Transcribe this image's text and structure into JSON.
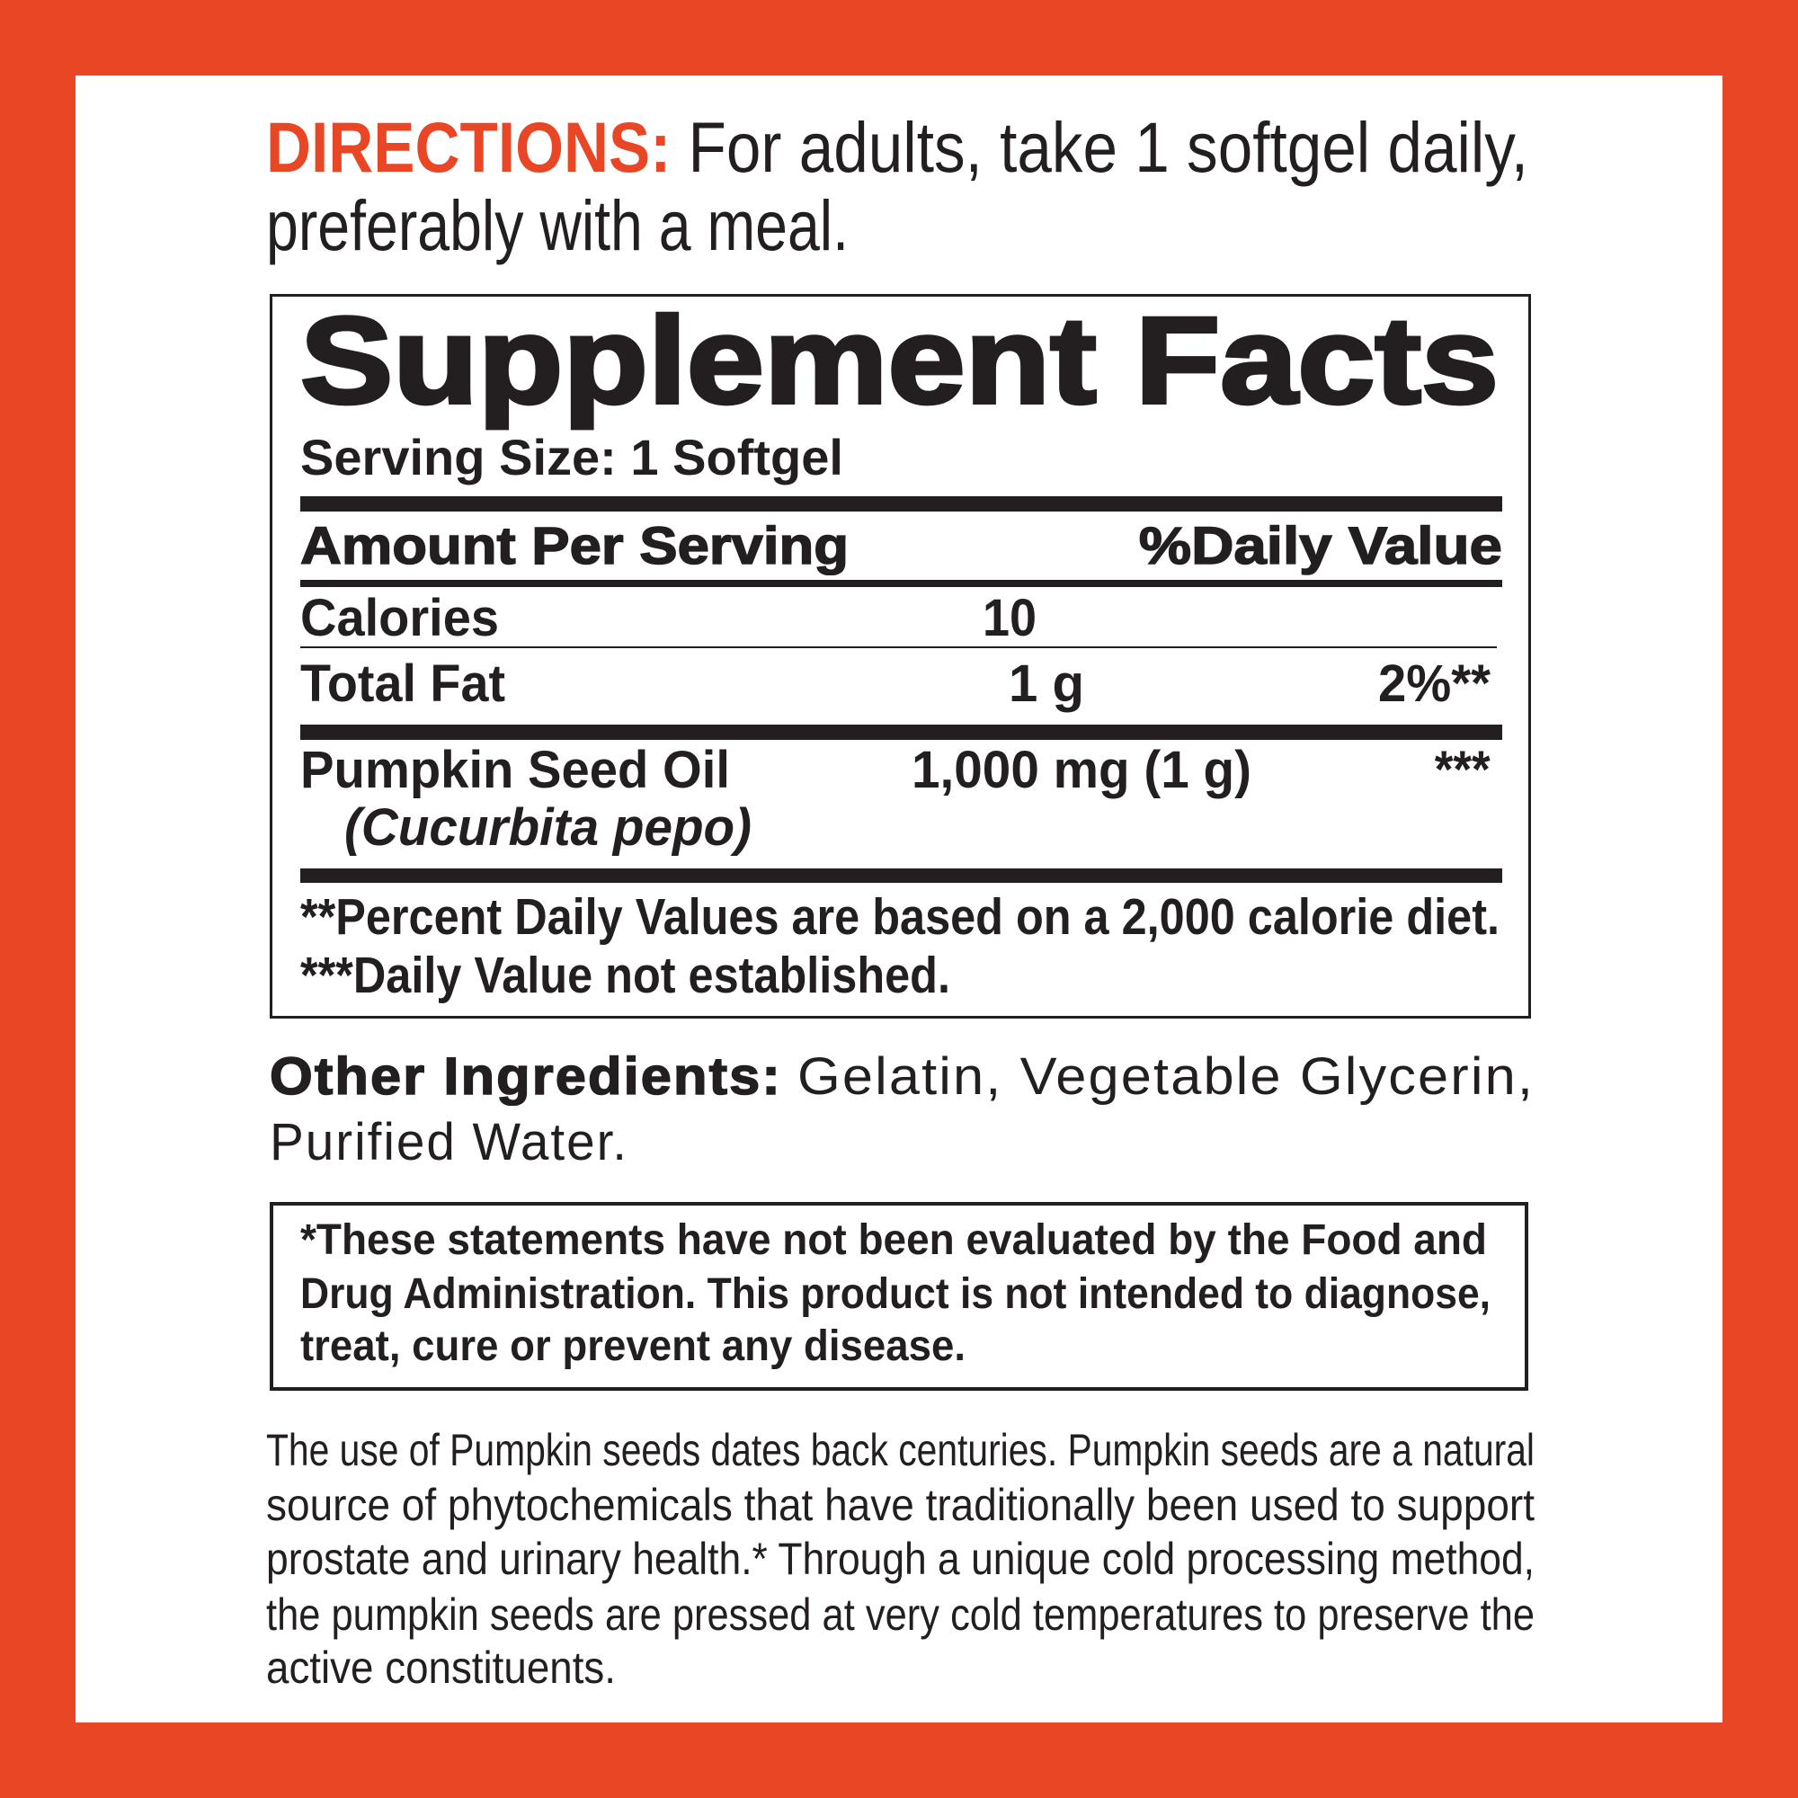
{
  "colors": {
    "border": "#E84624",
    "accent": "#E84624",
    "text": "#231f20",
    "background": "#ffffff"
  },
  "directions": {
    "label": "DIRECTIONS:",
    "line1": "For adults, take 1 softgel daily,",
    "line2": "preferably with a meal."
  },
  "facts": {
    "title": "Supplement Facts",
    "serving_size": "Serving Size: 1 Softgel",
    "header_amount": "Amount Per Serving",
    "header_dv": "%Daily Value",
    "rows": [
      {
        "name": "Calories",
        "amount": "10",
        "dv": ""
      },
      {
        "name": "Total Fat",
        "amount": "1 g",
        "dv": "2%**"
      },
      {
        "name": "Pumpkin Seed Oil",
        "sub": "(Cucurbita pepo)",
        "amount": "1,000 mg (1 g)",
        "dv": "***"
      }
    ],
    "footnotes": [
      "**Percent Daily Values are based on a 2,000 calorie diet.",
      "***Daily Value not established."
    ]
  },
  "other_ingredients": {
    "label": "Other Ingredients:",
    "line1": "Gelatin, Vegetable Glycerin,",
    "line2": "Purified Water."
  },
  "disclaimer": {
    "lines": [
      "*These statements have not been evaluated by the Food and",
      "Drug Administration. This product is not intended to diagnose,",
      "treat, cure or prevent any disease."
    ]
  },
  "description": {
    "lines": [
      "The use of Pumpkin seeds dates back centuries. Pumpkin seeds are a natural",
      "source of phytochemicals that have traditionally been used to support",
      "prostate and urinary health.* Through a unique cold processing method,",
      "the pumpkin seeds are pressed at very cold temperatures to preserve the",
      "active constituents."
    ]
  }
}
